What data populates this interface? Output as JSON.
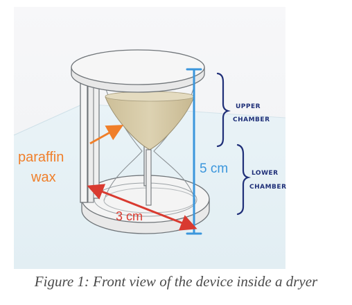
{
  "labels": {
    "material": [
      "paraffin",
      "wax"
    ],
    "height": "5 cm",
    "width": "3 cm",
    "upper_chamber": [
      "UPPER",
      "CHAMBER"
    ],
    "lower_chamber": [
      "LOWER",
      "CHAMBER"
    ]
  },
  "caption": "Figure 1: Front view of the device inside a dryer",
  "colors": {
    "background_top": "#f4f5f7",
    "floor": "#e7f2f6",
    "frame": "#f3f3f3",
    "outline": "#6f7478",
    "wax": "#d8ccaa",
    "label_orange": "#f07f2a",
    "measure_blue": "#3b96dc",
    "measure_red": "#d93a30",
    "handwriting": "#1f2f78"
  }
}
